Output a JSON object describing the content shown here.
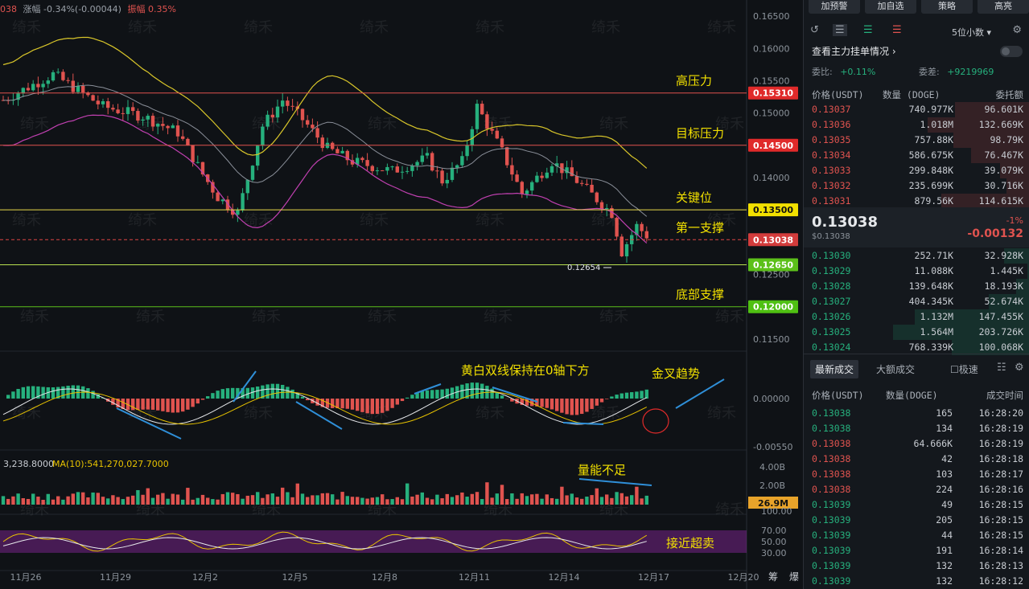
{
  "chart_header": {
    "symbol_tail": "038",
    "change_label": "涨幅 -0.34%(-0.00044)",
    "amplitude_label": "振幅 0.35%"
  },
  "watermark": "绮禾",
  "chart_data": {
    "type": "candlestick",
    "x_ticks": [
      "11月26",
      "11月29",
      "12月2",
      "12月5",
      "12月8",
      "12月11",
      "12月14",
      "12月17",
      "12月20"
    ],
    "price_axis": [
      "0.16500",
      "0.16000",
      "0.15500",
      "0.15000",
      "0.14500",
      "0.14000",
      "0.13500",
      "0.13000",
      "0.12500",
      "0.12000",
      "0.11500"
    ],
    "ylim": [
      0.1115,
      0.1675
    ],
    "levels": [
      {
        "label": "高压力",
        "value": "0.15310",
        "price": 0.1531,
        "color": "#e0534f",
        "badge": "#e02a2a"
      },
      {
        "label": "目标压力",
        "value": "0.14500",
        "price": 0.145,
        "color": "#e0534f",
        "badge": "#e02a2a"
      },
      {
        "label": "关键位",
        "value": "0.13500",
        "price": 0.135,
        "color": "#e8d84a",
        "badge": "#f2e000"
      },
      {
        "label": "第一支撑",
        "value": "0.13038",
        "price": 0.13038,
        "color": "#d44",
        "badge": "#d33c3c"
      },
      {
        "label": "",
        "value": "0.12650",
        "price": 0.1265,
        "color": "#b8e050",
        "badge": "#5cc01a"
      },
      {
        "label": "底部支撑",
        "value": "0.12000",
        "price": 0.12,
        "color": "#5cc01a",
        "badge": "#4fc012"
      }
    ],
    "low_marker": "0.12654",
    "macd_axis": [
      "0.00000",
      "-0.00550"
    ],
    "macd_annotations": [
      "黄白双线保持在0轴下方",
      "金叉趋势"
    ],
    "volume_header": "3,238.8000",
    "volume_ma": "MA(10):541,270,027.7000",
    "volume_axis": [
      "4.00B",
      "2.00B"
    ],
    "volume_badge": "26.9M",
    "volume_annotation": "量能不足",
    "kdj_axis": [
      "100.00",
      "70.00",
      "50.00",
      "30.00"
    ],
    "kdj_annotation": "接近超卖",
    "right_labels": [
      "筹",
      "爆"
    ]
  },
  "side": {
    "top_buttons": [
      "加预警",
      "加自选",
      "策略",
      "高亮"
    ],
    "precision": "5位小数",
    "depth_title": "查看主力挂单情况",
    "weibi_label": "委比:",
    "weibi_value": "+0.11%",
    "weicha_label": "委差:",
    "weicha_value": "+9219969",
    "cols": [
      "价格(USDT)",
      "数量 (DOGE)",
      "委托额"
    ],
    "asks": [
      {
        "p": "0.13037",
        "q": "740.977K",
        "a": "96.601K",
        "f": 0.55
      },
      {
        "p": "0.13036",
        "q": "1.018M",
        "a": "132.669K",
        "f": 0.75
      },
      {
        "p": "0.13035",
        "q": "757.88K",
        "a": "98.79K",
        "f": 0.56
      },
      {
        "p": "0.13034",
        "q": "586.675K",
        "a": "76.467K",
        "f": 0.43
      },
      {
        "p": "0.13033",
        "q": "299.848K",
        "a": "39.079K",
        "f": 0.22
      },
      {
        "p": "0.13032",
        "q": "235.699K",
        "a": "30.716K",
        "f": 0.17
      },
      {
        "p": "0.13031",
        "q": "879.56K",
        "a": "114.615K",
        "f": 0.65
      }
    ],
    "last_price": "0.13038",
    "last_usd": "$0.13038",
    "last_pct": "-1%",
    "last_chg": "-0.00132",
    "bids": [
      {
        "p": "0.13030",
        "q": "252.71K",
        "a": "32.928K",
        "f": 0.19
      },
      {
        "p": "0.13029",
        "q": "11.088K",
        "a": "1.445K",
        "f": 0.02
      },
      {
        "p": "0.13028",
        "q": "139.648K",
        "a": "18.193K",
        "f": 0.1
      },
      {
        "p": "0.13027",
        "q": "404.345K",
        "a": "52.674K",
        "f": 0.3
      },
      {
        "p": "0.13026",
        "q": "1.132M",
        "a": "147.455K",
        "f": 0.84
      },
      {
        "p": "0.13025",
        "q": "1.564M",
        "a": "203.726K",
        "f": 1.0
      },
      {
        "p": "0.13024",
        "q": "768.339K",
        "a": "100.068K",
        "f": 0.57
      }
    ],
    "trade_tabs": [
      "最新成交",
      "大额成交"
    ],
    "trade_option": "极速",
    "trade_cols": [
      "价格(USDT)",
      "数量(DOGE)",
      "成交时间"
    ],
    "trades": [
      {
        "p": "0.13038",
        "q": "165",
        "t": "16:28:20",
        "c": "g"
      },
      {
        "p": "0.13038",
        "q": "134",
        "t": "16:28:19",
        "c": "g"
      },
      {
        "p": "0.13038",
        "q": "64.666K",
        "t": "16:28:19",
        "c": "r"
      },
      {
        "p": "0.13038",
        "q": "42",
        "t": "16:28:18",
        "c": "r"
      },
      {
        "p": "0.13038",
        "q": "103",
        "t": "16:28:17",
        "c": "r"
      },
      {
        "p": "0.13038",
        "q": "224",
        "t": "16:28:16",
        "c": "r"
      },
      {
        "p": "0.13039",
        "q": "49",
        "t": "16:28:15",
        "c": "g"
      },
      {
        "p": "0.13039",
        "q": "205",
        "t": "16:28:15",
        "c": "g"
      },
      {
        "p": "0.13039",
        "q": "44",
        "t": "16:28:15",
        "c": "g"
      },
      {
        "p": "0.13039",
        "q": "191",
        "t": "16:28:14",
        "c": "g"
      },
      {
        "p": "0.13039",
        "q": "132",
        "t": "16:28:13",
        "c": "g"
      },
      {
        "p": "0.13039",
        "q": "132",
        "t": "16:28:12",
        "c": "g"
      }
    ]
  }
}
